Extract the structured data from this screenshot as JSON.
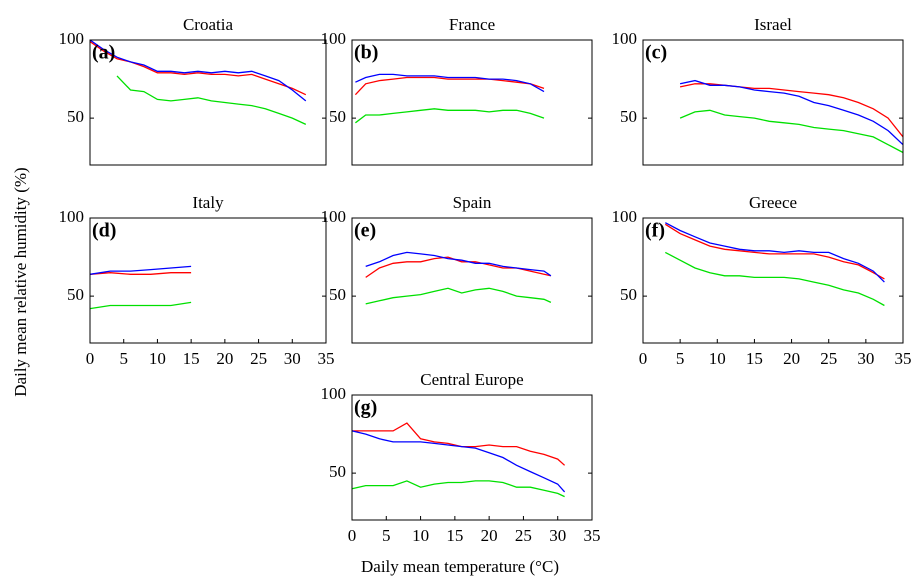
{
  "ylabel": "Daily mean relative humidity (%)",
  "xlabel": "Daily mean temperature (°C)",
  "chart_data": [
    {
      "type": "line",
      "title": "Croatia",
      "panel_label": "(a)",
      "xlim": [
        0,
        35
      ],
      "ylim": [
        20,
        100
      ],
      "yticks": [
        50,
        100
      ],
      "x": [
        0,
        2,
        4,
        6,
        8,
        10,
        12,
        14,
        16,
        18,
        20,
        22,
        24,
        26,
        28,
        30,
        32
      ],
      "series": [
        {
          "color": "#ff0000",
          "values": [
            99,
            93,
            88,
            86,
            83,
            79,
            79,
            78,
            79,
            78,
            78,
            77,
            78,
            75,
            72,
            69,
            65
          ]
        },
        {
          "color": "#0000ff",
          "values": [
            100,
            94,
            89,
            86,
            84,
            80,
            80,
            79,
            80,
            79,
            80,
            79,
            80,
            77,
            74,
            68,
            61
          ]
        },
        {
          "color": "#00e000",
          "values": [
            null,
            null,
            77,
            68,
            67,
            62,
            61,
            62,
            63,
            61,
            60,
            59,
            58,
            56,
            53,
            50,
            46
          ]
        }
      ]
    },
    {
      "type": "line",
      "title": "France",
      "panel_label": "(b)",
      "xlim": [
        0,
        35
      ],
      "ylim": [
        20,
        100
      ],
      "yticks": [
        50,
        100
      ],
      "x": [
        0.5,
        2,
        4,
        6,
        8,
        10,
        12,
        14,
        16,
        18,
        20,
        22,
        24,
        26,
        28
      ],
      "series": [
        {
          "color": "#ff0000",
          "values": [
            65,
            72,
            74,
            75,
            76,
            76,
            76,
            75,
            75,
            75,
            75,
            74,
            73,
            72,
            69
          ]
        },
        {
          "color": "#0000ff",
          "values": [
            73,
            76,
            78,
            78,
            77,
            77,
            77,
            76,
            76,
            76,
            75,
            75,
            74,
            72,
            67
          ]
        },
        {
          "color": "#00e000",
          "values": [
            47,
            52,
            52,
            53,
            54,
            55,
            56,
            55,
            55,
            55,
            54,
            55,
            55,
            53,
            50
          ]
        }
      ]
    },
    {
      "type": "line",
      "title": "Israel",
      "panel_label": "(c)",
      "xlim": [
        0,
        35
      ],
      "ylim": [
        20,
        100
      ],
      "yticks": [
        50,
        100
      ],
      "x": [
        5,
        7,
        9,
        11,
        13,
        15,
        17,
        19,
        21,
        23,
        25,
        27,
        29,
        31,
        33,
        35
      ],
      "series": [
        {
          "color": "#ff0000",
          "values": [
            70,
            72,
            72,
            71,
            70,
            69,
            69,
            68,
            67,
            66,
            65,
            63,
            60,
            56,
            50,
            38
          ]
        },
        {
          "color": "#0000ff",
          "values": [
            72,
            74,
            71,
            71,
            70,
            68,
            67,
            66,
            64,
            60,
            58,
            55,
            52,
            48,
            42,
            33
          ]
        },
        {
          "color": "#00e000",
          "values": [
            50,
            54,
            55,
            52,
            51,
            50,
            48,
            47,
            46,
            44,
            43,
            42,
            40,
            38,
            33,
            28
          ]
        }
      ]
    },
    {
      "type": "line",
      "title": "Italy",
      "panel_label": "(d)",
      "xlim": [
        0,
        35
      ],
      "ylim": [
        20,
        100
      ],
      "yticks": [
        50,
        100
      ],
      "xticks": [
        0,
        5,
        10,
        15,
        20,
        25,
        30,
        35
      ],
      "x": [
        0,
        3,
        6,
        9,
        12,
        15
      ],
      "series": [
        {
          "color": "#ff0000",
          "values": [
            64,
            65,
            64,
            64,
            65,
            65
          ]
        },
        {
          "color": "#0000ff",
          "values": [
            64,
            66,
            66,
            67,
            68,
            69
          ]
        },
        {
          "color": "#00e000",
          "values": [
            42,
            44,
            44,
            44,
            44,
            46
          ]
        }
      ]
    },
    {
      "type": "line",
      "title": "Spain",
      "panel_label": "(e)",
      "xlim": [
        0,
        35
      ],
      "ylim": [
        20,
        100
      ],
      "yticks": [
        50,
        100
      ],
      "x": [
        2,
        4,
        6,
        8,
        10,
        12,
        14,
        16,
        18,
        20,
        22,
        24,
        26,
        28,
        29
      ],
      "series": [
        {
          "color": "#ff0000",
          "values": [
            62,
            68,
            71,
            72,
            72,
            74,
            75,
            72,
            72,
            70,
            68,
            68,
            66,
            64,
            63
          ]
        },
        {
          "color": "#0000ff",
          "values": [
            69,
            72,
            76,
            78,
            77,
            76,
            74,
            73,
            71,
            71,
            69,
            68,
            67,
            66,
            63
          ]
        },
        {
          "color": "#00e000",
          "values": [
            45,
            47,
            49,
            50,
            51,
            53,
            55,
            52,
            54,
            55,
            53,
            50,
            49,
            48,
            46
          ]
        }
      ]
    },
    {
      "type": "line",
      "title": "Greece",
      "panel_label": "(f)",
      "xlim": [
        0,
        35
      ],
      "ylim": [
        20,
        100
      ],
      "yticks": [
        50,
        100
      ],
      "xticks": [
        0,
        5,
        10,
        15,
        20,
        25,
        30,
        35
      ],
      "x": [
        3,
        5,
        7,
        9,
        11,
        13,
        15,
        17,
        19,
        21,
        23,
        25,
        27,
        29,
        31,
        32.5
      ],
      "series": [
        {
          "color": "#ff0000",
          "values": [
            96,
            90,
            86,
            82,
            80,
            79,
            78,
            77,
            77,
            77,
            77,
            75,
            72,
            70,
            65,
            61
          ]
        },
        {
          "color": "#0000ff",
          "values": [
            97,
            92,
            88,
            84,
            82,
            80,
            79,
            79,
            78,
            79,
            78,
            78,
            74,
            71,
            66,
            59
          ]
        },
        {
          "color": "#00e000",
          "values": [
            78,
            73,
            68,
            65,
            63,
            63,
            62,
            62,
            62,
            61,
            59,
            57,
            54,
            52,
            48,
            44
          ]
        }
      ]
    },
    {
      "type": "line",
      "title": "Central Europe",
      "panel_label": "(g)",
      "xlim": [
        0,
        35
      ],
      "ylim": [
        20,
        100
      ],
      "yticks": [
        50,
        100
      ],
      "xticks": [
        0,
        5,
        10,
        15,
        20,
        25,
        30,
        35
      ],
      "x": [
        0,
        2,
        4,
        6,
        8,
        10,
        12,
        14,
        16,
        18,
        20,
        22,
        24,
        26,
        28,
        30,
        31
      ],
      "series": [
        {
          "color": "#ff0000",
          "values": [
            77,
            77,
            77,
            77,
            82,
            72,
            70,
            69,
            67,
            67,
            68,
            67,
            67,
            64,
            62,
            59,
            55
          ]
        },
        {
          "color": "#0000ff",
          "values": [
            77,
            75,
            72,
            70,
            70,
            70,
            69,
            68,
            67,
            66,
            63,
            60,
            55,
            51,
            47,
            43,
            38
          ]
        },
        {
          "color": "#00e000",
          "values": [
            40,
            42,
            42,
            42,
            45,
            41,
            43,
            44,
            44,
            45,
            45,
            44,
            41,
            41,
            39,
            37,
            35
          ]
        }
      ]
    }
  ]
}
